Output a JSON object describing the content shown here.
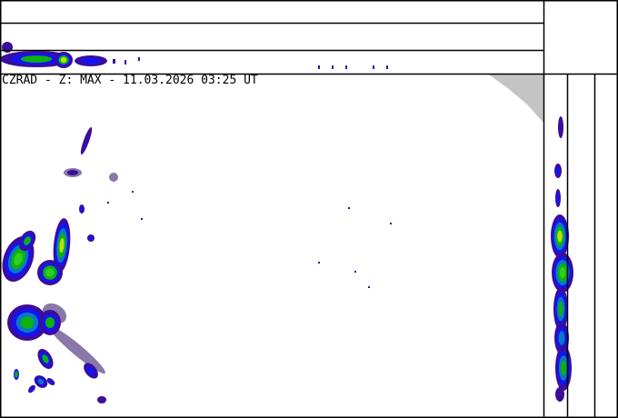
{
  "product": {
    "title": "CZRAD - Z: MAX - 11.03.2026 03:25 UT"
  },
  "panels": {
    "main": "plan-view max reflectivity",
    "top": "west-east vertical max projection",
    "right": "south-north vertical max projection"
  },
  "colors": {
    "frame": "#000000",
    "out_of_range": "#c4c4c4",
    "echo_levels": [
      "#8a78a8",
      "#3c0c9c",
      "#1414f0",
      "#0878c8",
      "#10b010",
      "#30d020",
      "#b8e010"
    ]
  }
}
